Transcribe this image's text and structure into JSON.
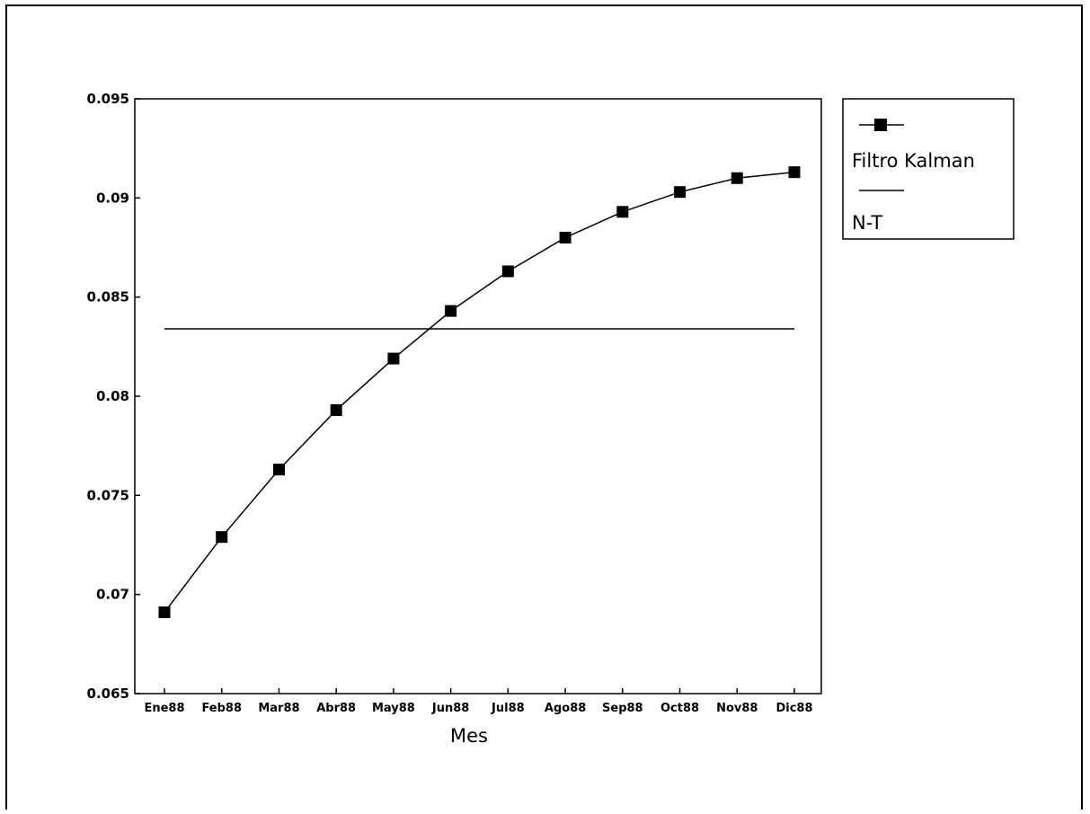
{
  "chart_data": {
    "type": "line",
    "title": "",
    "xlabel": "Mes",
    "ylabel": "",
    "categories": [
      "Ene88",
      "Feb88",
      "Mar88",
      "Abr88",
      "May88",
      "Jun88",
      "Jul88",
      "Ago88",
      "Sep88",
      "Oct88",
      "Nov88",
      "Dic88"
    ],
    "ylim": [
      0.065,
      0.095
    ],
    "yticks": [
      0.065,
      0.07,
      0.075,
      0.08,
      0.085,
      0.09,
      0.095
    ],
    "ytick_labels": [
      "0.065",
      "0.07",
      "0.075",
      "0.08",
      "0.085",
      "0.09",
      "0.095"
    ],
    "grid": false,
    "legend_position": "right",
    "series": [
      {
        "name": "Filtro Kalman",
        "marker": "square",
        "color": "#000000",
        "values": [
          0.0691,
          0.0729,
          0.0763,
          0.0793,
          0.0819,
          0.0843,
          0.0863,
          0.088,
          0.0893,
          0.0903,
          0.091,
          0.0913
        ]
      },
      {
        "name": "N-T",
        "marker": "none",
        "color": "#000000",
        "values": [
          0.0834,
          0.0834,
          0.0834,
          0.0834,
          0.0834,
          0.0834,
          0.0834,
          0.0834,
          0.0834,
          0.0834,
          0.0834,
          0.0834
        ]
      }
    ]
  }
}
